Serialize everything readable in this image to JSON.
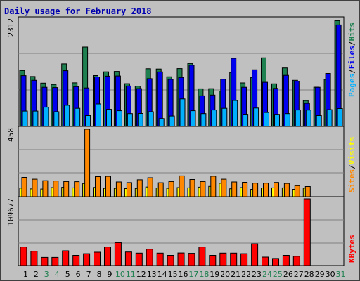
{
  "title": "Daily usage for February 2018",
  "colors": {
    "hits": "#1e8050",
    "files": "#0000ee",
    "pages": "#00b0ff",
    "visits": "#ffff00",
    "sites": "#ff8800",
    "kbytes": "#ff0000",
    "weekday": "#000000",
    "weekend": "#1e8050"
  },
  "chart_data": [
    {
      "type": "bar",
      "panel": "top",
      "categories": [
        "1",
        "2",
        "3",
        "4",
        "5",
        "6",
        "7",
        "8",
        "9",
        "10",
        "11",
        "12",
        "13",
        "14",
        "15",
        "16",
        "17",
        "18",
        "19",
        "20",
        "21",
        "22",
        "23",
        "24",
        "25",
        "26",
        "27",
        "28",
        "29",
        "30",
        "31"
      ],
      "weekend_days": [
        "3",
        "4",
        "10",
        "11",
        "17",
        "18",
        "24",
        "25",
        "31"
      ],
      "ytick_label": "2312",
      "ylim": [
        0,
        2312
      ],
      "series": [
        {
          "name": "Hits",
          "legend_label": "Hits",
          "values": [
            1212,
            1081,
            938,
            910,
            1356,
            945,
            1719,
            1103,
            1183,
            1193,
            926,
            873,
            1251,
            1244,
            1076,
            1253,
            1364,
            816,
            819,
            768,
            1166,
            943,
            1059,
            1486,
            924,
            1267,
            1000,
            562,
            850,
            1019,
            2290
          ]
        },
        {
          "name": "Files",
          "legend_label": "Files",
          "values": [
            1102,
            1000,
            849,
            843,
            1207,
            862,
            834,
            1073,
            1089,
            1093,
            876,
            820,
            1036,
            1182,
            1021,
            1060,
            1326,
            663,
            680,
            1023,
            1476,
            848,
            1227,
            957,
            825,
            1108,
            980,
            501,
            849,
            1148,
            2200
          ]
        },
        {
          "name": "Pages",
          "legend_label": "Pages",
          "values": [
            333,
            333,
            417,
            319,
            458,
            392,
            236,
            486,
            371,
            340,
            278,
            282,
            320,
            170,
            227,
            596,
            340,
            278,
            356,
            392,
            563,
            265,
            398,
            303,
            263,
            278,
            356,
            354,
            236,
            364,
            388
          ]
        }
      ]
    },
    {
      "type": "bar",
      "panel": "middle",
      "categories": [
        "1",
        "2",
        "3",
        "4",
        "5",
        "6",
        "7",
        "8",
        "9",
        "10",
        "11",
        "12",
        "13",
        "14",
        "15",
        "16",
        "17",
        "18",
        "19",
        "20",
        "21",
        "22",
        "23",
        "24",
        "25",
        "26",
        "27",
        "28",
        "29",
        "30",
        "31"
      ],
      "ytick_label": "458",
      "ylim": [
        0,
        458
      ],
      "series": [
        {
          "name": "Visits",
          "legend_label": "Visits",
          "values": [
            58,
            53,
            52,
            62,
            64,
            60,
            89,
            63,
            57,
            57,
            55,
            56,
            66,
            59,
            57,
            62,
            60,
            65,
            70,
            91,
            54,
            62,
            50,
            59,
            60,
            60,
            50,
            58,
            0,
            0,
            0
          ]
        },
        {
          "name": "Sites",
          "legend_label": "Sites",
          "values": [
            131,
            119,
            109,
            107,
            103,
            102,
            458,
            136,
            138,
            100,
            96,
            115,
            129,
            95,
            103,
            141,
            117,
            103,
            139,
            119,
            100,
            98,
            92,
            92,
            97,
            90,
            75,
            69,
            0,
            0,
            0
          ]
        }
      ]
    },
    {
      "type": "bar",
      "panel": "bottom",
      "categories": [
        "1",
        "2",
        "3",
        "4",
        "5",
        "6",
        "7",
        "8",
        "9",
        "10",
        "11",
        "12",
        "13",
        "14",
        "15",
        "16",
        "17",
        "18",
        "19",
        "20",
        "21",
        "22",
        "23",
        "24",
        "25",
        "26",
        "27",
        "28",
        "29",
        "30",
        "31"
      ],
      "ytick_label": "109677",
      "ylim": [
        0,
        109677
      ],
      "series": [
        {
          "name": "KBytes",
          "legend_label": "KBytes",
          "values": [
            30800,
            23800,
            13500,
            13500,
            24500,
            16900,
            19700,
            22200,
            30800,
            38000,
            22500,
            20600,
            27200,
            20600,
            16900,
            20900,
            20300,
            30800,
            16900,
            20600,
            20600,
            19700,
            36000,
            14000,
            11800,
            16900,
            15400,
            110800,
            0,
            0,
            0
          ]
        }
      ]
    }
  ]
}
